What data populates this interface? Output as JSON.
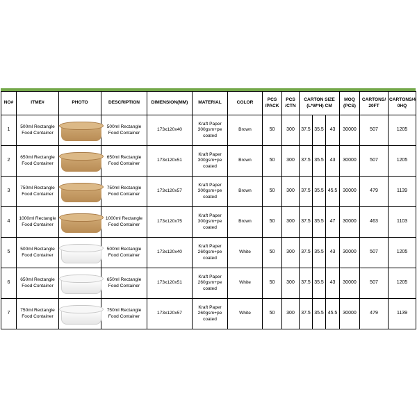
{
  "headers": {
    "no": "NO#",
    "item": "ITME#",
    "photo": "PHOTO",
    "description": "DESCRIPTION",
    "dimension": "DIMENSION(MM)",
    "material": "MATERIAL",
    "color": "COLOR",
    "pcs_pack": "PCS /PACK",
    "pcs_ctn": "PCS /CTN",
    "carton_size": "CARTON SIZE (L*W*H) CM",
    "moq": "MOQ (PCS)",
    "cartons_20ft": "CARTONS/ 20FT",
    "cartons_40hq": "CARTONS/4 0HQ"
  },
  "rows": [
    {
      "no": "1",
      "item": "500ml Rectangle Food Container",
      "photo": "brown-rectangle-container",
      "description": "500ml Rectangle Food Container",
      "dimension": "173x120x40",
      "material": "Kraft Paper 300gsm+pe coated",
      "color": "Brown",
      "pcs_pack": "50",
      "pcs_ctn": "300",
      "l": "37.5",
      "w": "35.5",
      "h": "43",
      "moq": "30000",
      "c20": "507",
      "c40": "1205"
    },
    {
      "no": "2",
      "item": "650ml Rectangle Food Container",
      "photo": "brown-rectangle-container",
      "description": "650ml Rectangle Food Container",
      "dimension": "173x120x51",
      "material": "Kraft Paper 300gsm+pe coated",
      "color": "Brown",
      "pcs_pack": "50",
      "pcs_ctn": "300",
      "l": "37.5",
      "w": "35.5",
      "h": "43",
      "moq": "30000",
      "c20": "507",
      "c40": "1205"
    },
    {
      "no": "3",
      "item": "750ml Rectangle Food Container",
      "photo": "brown-rectangle-container",
      "description": "750ml Rectangle Food Container",
      "dimension": "173x120x57",
      "material": "Kraft Paper 300gsm+pe coated",
      "color": "Brown",
      "pcs_pack": "50",
      "pcs_ctn": "300",
      "l": "37.5",
      "w": "35.5",
      "h": "45.5",
      "moq": "30000",
      "c20": "479",
      "c40": "1139"
    },
    {
      "no": "4",
      "item": "1000ml Rectangle Food Container",
      "photo": "brown-rectangle-container",
      "description": "1000ml Rectangle Food Container",
      "dimension": "173x120x75",
      "material": "Kraft Paper 300gsm+pe coated",
      "color": "Brown",
      "pcs_pack": "50",
      "pcs_ctn": "300",
      "l": "37.5",
      "w": "35.5",
      "h": "47",
      "moq": "30000",
      "c20": "463",
      "c40": "1103"
    },
    {
      "no": "5",
      "item": "500ml Rectangle Food Container",
      "photo": "white-rectangle-container",
      "description": "500ml Rectangle Food Container",
      "dimension": "173x120x40",
      "material": "Kraft Paper 260gsm+pe coated",
      "color": "White",
      "pcs_pack": "50",
      "pcs_ctn": "300",
      "l": "37.5",
      "w": "35.5",
      "h": "43",
      "moq": "30000",
      "c20": "507",
      "c40": "1205"
    },
    {
      "no": "6",
      "item": "650ml Rectangle Food Container",
      "photo": "white-rectangle-container",
      "description": "650ml Rectangle Food Container",
      "dimension": "173x120x51",
      "material": "Kraft Paper 260gsm+pe coated",
      "color": "White",
      "pcs_pack": "50",
      "pcs_ctn": "300",
      "l": "37.5",
      "w": "35.5",
      "h": "43",
      "moq": "30000",
      "c20": "507",
      "c40": "1205"
    },
    {
      "no": "7",
      "item": "750ml Rectangle Food Container",
      "photo": "white-rectangle-container",
      "description": "750ml Rectangle Food Container",
      "dimension": "173x120x57",
      "material": "Kraft Paper 260gsm+pe coated",
      "color": "White",
      "pcs_pack": "50",
      "pcs_ctn": "300",
      "l": "37.5",
      "w": "35.5",
      "h": "45.5",
      "moq": "30000",
      "c20": "479",
      "c40": "1139"
    }
  ],
  "colors": {
    "accent_bar": "#74a84a",
    "brown": "#c49a63",
    "white": "#f4f4f4"
  }
}
